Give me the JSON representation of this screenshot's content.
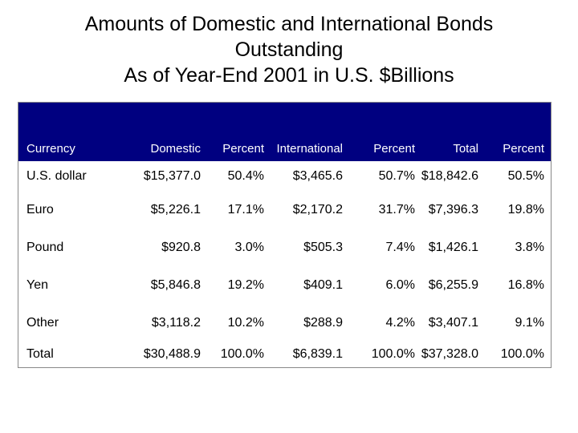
{
  "title": {
    "line1": "Amounts of Domestic and International Bonds",
    "line2": "Outstanding",
    "line3": "As of Year-End 2001 in U.S. $Billions"
  },
  "table": {
    "headers": [
      "Currency",
      "Domestic",
      "Percent",
      "International",
      "Percent",
      "Total",
      "Percent"
    ],
    "rows": [
      [
        "U.S. dollar",
        "$15,377.0",
        "50.4%",
        "$3,465.6",
        "50.7%",
        "$18,842.6",
        "50.5%"
      ],
      [
        "Euro",
        "$5,226.1",
        "17.1%",
        "$2,170.2",
        "31.7%",
        "$7,396.3",
        "19.8%"
      ],
      [
        "Pound",
        "$920.8",
        "3.0%",
        "$505.3",
        "7.4%",
        "$1,426.1",
        "3.8%"
      ],
      [
        "Yen",
        "$5,846.8",
        "19.2%",
        "$409.1",
        "6.0%",
        "$6,255.9",
        "16.8%"
      ],
      [
        "Other",
        "$3,118.2",
        "10.2%",
        "$288.9",
        "4.2%",
        "$3,407.1",
        "9.1%"
      ],
      [
        "Total",
        "$30,488.9",
        "100.0%",
        "$6,839.1",
        "100.0%",
        "$37,328.0",
        "100.0%"
      ]
    ]
  },
  "colors": {
    "header_band": "#000080",
    "header_text": "#ffffff"
  }
}
